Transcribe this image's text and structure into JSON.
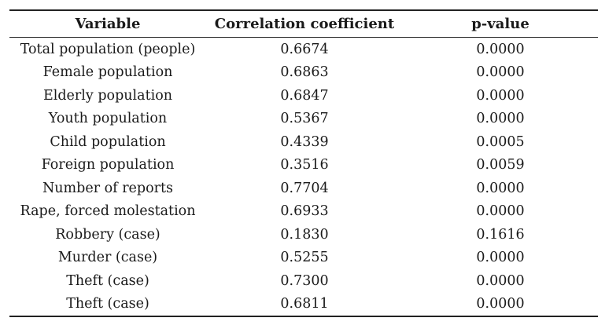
{
  "table": {
    "headers": [
      "Variable",
      "Correlation coefficient",
      "p-value"
    ],
    "rows": [
      [
        "Total population (people)",
        "0.6674",
        "0.0000"
      ],
      [
        "Female population",
        "0.6863",
        "0.0000"
      ],
      [
        "Elderly population",
        "0.6847",
        "0.0000"
      ],
      [
        "Youth population",
        "0.5367",
        "0.0000"
      ],
      [
        "Child population",
        "0.4339",
        "0.0005"
      ],
      [
        "Foreign population",
        "0.3516",
        "0.0059"
      ],
      [
        "Number of reports",
        "0.7704",
        "0.0000"
      ],
      [
        "Rape, forced molestation",
        "0.6933",
        "0.0000"
      ],
      [
        "Robbery (case)",
        "0.1830",
        "0.1616"
      ],
      [
        "Murder (case)",
        "0.5255",
        "0.0000"
      ],
      [
        "Theft (case)",
        "0.7300",
        "0.0000"
      ],
      [
        "Theft (case)",
        "0.6811",
        "0.0000"
      ]
    ]
  }
}
